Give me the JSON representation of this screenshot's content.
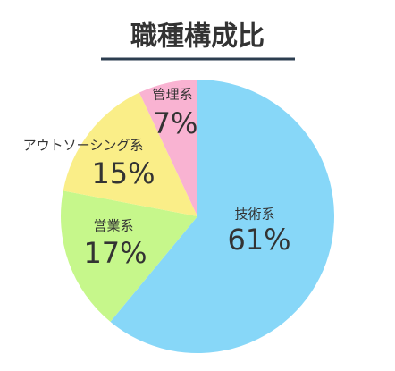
{
  "chart_data": {
    "type": "pie",
    "title": "職種構成比",
    "categories": [
      "技術系",
      "営業系",
      "アウトソーシング系",
      "管理系"
    ],
    "values": [
      61,
      17,
      15,
      7
    ],
    "value_labels": [
      "61%",
      "17%",
      "15%",
      "7%"
    ],
    "colors": [
      "#87d7f8",
      "#c6f78b",
      "#faee88",
      "#f9b3d2"
    ]
  }
}
